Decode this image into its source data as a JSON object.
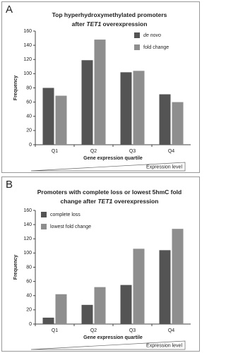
{
  "chart_data": [
    {
      "type": "bar",
      "panel": "A",
      "title": [
        [
          "Top hyperhydroxymethylated promoters"
        ],
        [
          "after ",
          {
            "text": "TET1",
            "italic": true
          },
          " overexpression"
        ]
      ],
      "x_label": "Gene expression quartile",
      "y_label": "Frequency",
      "annotation": "Expression level",
      "categories": [
        "Q1",
        "Q2",
        "Q3",
        "Q4"
      ],
      "series": [
        {
          "name": "de novo",
          "italic": true,
          "color": "#545454",
          "values": [
            80,
            119,
            102,
            71
          ]
        },
        {
          "name": "fold change",
          "color": "#8e8e8e",
          "values": [
            69,
            148,
            104,
            60
          ]
        }
      ],
      "ylim": [
        0,
        160
      ],
      "yticks": [
        0,
        20,
        40,
        60,
        80,
        100,
        120,
        140,
        160
      ],
      "legend": "top-right"
    },
    {
      "type": "bar",
      "panel": "B",
      "title": [
        [
          "Promoters with complete loss or lowest 5hmC fold"
        ],
        [
          "change after ",
          {
            "text": "TET1",
            "italic": true
          },
          " overexpression"
        ]
      ],
      "x_label": "Gene expression quartile",
      "y_label": "Frequency",
      "annotation": "Expression level",
      "categories": [
        "Q1",
        "Q2",
        "Q3",
        "Q4"
      ],
      "series": [
        {
          "name": "complete loss",
          "color": "#545454",
          "values": [
            9,
            27,
            55,
            104
          ]
        },
        {
          "name": "lowest fold change",
          "color": "#8e8e8e",
          "values": [
            42,
            52,
            106,
            134
          ]
        }
      ],
      "ylim": [
        0,
        160
      ],
      "yticks": [
        0,
        20,
        40,
        60,
        80,
        100,
        120,
        140,
        160
      ],
      "legend": "top-left"
    }
  ]
}
